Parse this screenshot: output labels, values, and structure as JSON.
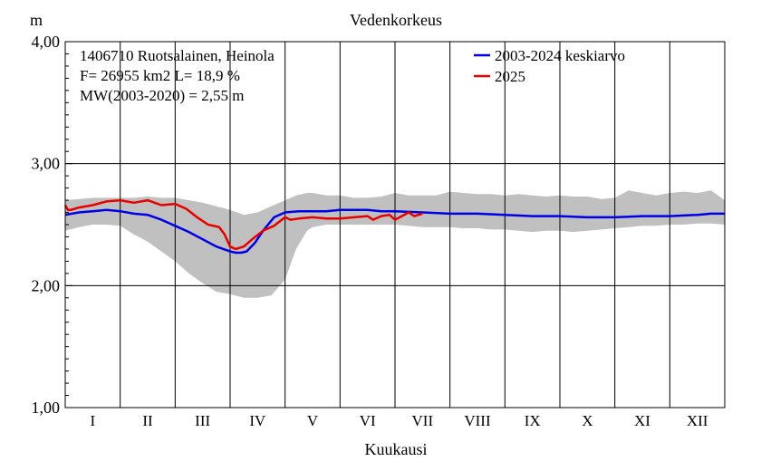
{
  "chart_data": {
    "type": "line",
    "title": "Vedenkorkeus",
    "ylabel": "m",
    "xlabel": "Kuukausi",
    "ylim": [
      1.0,
      4.0
    ],
    "xlim": [
      0,
      12
    ],
    "y_ticks": [
      {
        "value": 1.0,
        "label": "1,00"
      },
      {
        "value": 2.0,
        "label": "2,00"
      },
      {
        "value": 3.0,
        "label": "3,00"
      },
      {
        "value": 4.0,
        "label": "4,00"
      }
    ],
    "months": [
      "I",
      "II",
      "III",
      "IV",
      "V",
      "VI",
      "VII",
      "VIII",
      "IX",
      "X",
      "XI",
      "XII"
    ],
    "grid": true,
    "legend_position": "top-right",
    "info_lines": [
      "1406710 Ruotsalainen, Heinola",
      "F=  26955 km2 L=  18,9 %",
      "MW(2003-2020) = 2,55 m"
    ],
    "range_band": {
      "color": "#c0c0c0",
      "x": [
        0.0,
        0.25,
        0.5,
        0.75,
        1.0,
        1.25,
        1.5,
        1.75,
        2.0,
        2.25,
        2.5,
        2.75,
        3.0,
        3.25,
        3.5,
        3.75,
        4.0,
        4.2,
        4.4,
        4.5,
        4.75,
        5.0,
        5.25,
        5.5,
        5.75,
        6.0,
        6.25,
        6.5,
        6.75,
        7.0,
        7.25,
        7.5,
        7.75,
        8.0,
        8.25,
        8.5,
        8.75,
        9.0,
        9.25,
        9.5,
        9.75,
        10.0,
        10.25,
        10.5,
        10.75,
        11.0,
        11.25,
        11.5,
        11.75,
        12.0
      ],
      "upper": [
        2.7,
        2.71,
        2.72,
        2.72,
        2.72,
        2.72,
        2.73,
        2.72,
        2.72,
        2.7,
        2.68,
        2.65,
        2.62,
        2.58,
        2.6,
        2.65,
        2.7,
        2.74,
        2.76,
        2.76,
        2.74,
        2.74,
        2.72,
        2.72,
        2.73,
        2.76,
        2.74,
        2.74,
        2.74,
        2.77,
        2.76,
        2.75,
        2.75,
        2.74,
        2.75,
        2.74,
        2.73,
        2.74,
        2.73,
        2.73,
        2.71,
        2.72,
        2.78,
        2.76,
        2.74,
        2.76,
        2.77,
        2.76,
        2.78,
        2.7
      ],
      "lower": [
        2.45,
        2.48,
        2.5,
        2.5,
        2.49,
        2.42,
        2.36,
        2.28,
        2.2,
        2.1,
        2.02,
        1.95,
        1.93,
        1.9,
        1.9,
        1.92,
        2.05,
        2.3,
        2.45,
        2.48,
        2.5,
        2.5,
        2.5,
        2.5,
        2.5,
        2.5,
        2.49,
        2.48,
        2.48,
        2.48,
        2.47,
        2.47,
        2.46,
        2.46,
        2.45,
        2.44,
        2.45,
        2.45,
        2.44,
        2.45,
        2.46,
        2.47,
        2.48,
        2.49,
        2.49,
        2.5,
        2.5,
        2.51,
        2.51,
        2.5
      ]
    },
    "series": [
      {
        "name": "2003-2024 keskiarvo",
        "color": "#0000e6",
        "x": [
          0.0,
          0.25,
          0.5,
          0.75,
          1.0,
          1.25,
          1.5,
          1.75,
          2.0,
          2.25,
          2.5,
          2.75,
          3.0,
          3.1,
          3.2,
          3.3,
          3.45,
          3.6,
          3.8,
          4.0,
          4.25,
          4.5,
          4.75,
          5.0,
          5.25,
          5.5,
          5.75,
          6.0,
          6.5,
          7.0,
          7.5,
          8.0,
          8.5,
          9.0,
          9.5,
          10.0,
          10.5,
          11.0,
          11.5,
          11.75,
          12.0
        ],
        "values": [
          2.58,
          2.6,
          2.61,
          2.62,
          2.61,
          2.59,
          2.58,
          2.54,
          2.49,
          2.44,
          2.38,
          2.32,
          2.28,
          2.27,
          2.27,
          2.28,
          2.35,
          2.45,
          2.56,
          2.6,
          2.61,
          2.61,
          2.61,
          2.62,
          2.62,
          2.62,
          2.61,
          2.61,
          2.6,
          2.59,
          2.59,
          2.58,
          2.57,
          2.57,
          2.56,
          2.56,
          2.57,
          2.57,
          2.58,
          2.59,
          2.59
        ]
      },
      {
        "name": "2025",
        "color": "#e60000",
        "x": [
          0.0,
          0.05,
          0.1,
          0.25,
          0.5,
          0.75,
          1.0,
          1.25,
          1.5,
          1.75,
          2.0,
          2.2,
          2.4,
          2.6,
          2.8,
          2.9,
          3.0,
          3.1,
          3.25,
          3.4,
          3.6,
          3.8,
          4.0,
          4.1,
          4.25,
          4.5,
          4.75,
          5.0,
          5.25,
          5.5,
          5.6,
          5.75,
          5.9,
          6.0,
          6.25,
          6.35,
          6.5
        ],
        "values": [
          2.66,
          2.62,
          2.62,
          2.64,
          2.66,
          2.69,
          2.7,
          2.68,
          2.7,
          2.66,
          2.67,
          2.63,
          2.56,
          2.5,
          2.48,
          2.42,
          2.32,
          2.3,
          2.32,
          2.38,
          2.45,
          2.49,
          2.56,
          2.54,
          2.55,
          2.56,
          2.55,
          2.55,
          2.56,
          2.57,
          2.54,
          2.57,
          2.58,
          2.54,
          2.6,
          2.57,
          2.59
        ]
      }
    ]
  }
}
